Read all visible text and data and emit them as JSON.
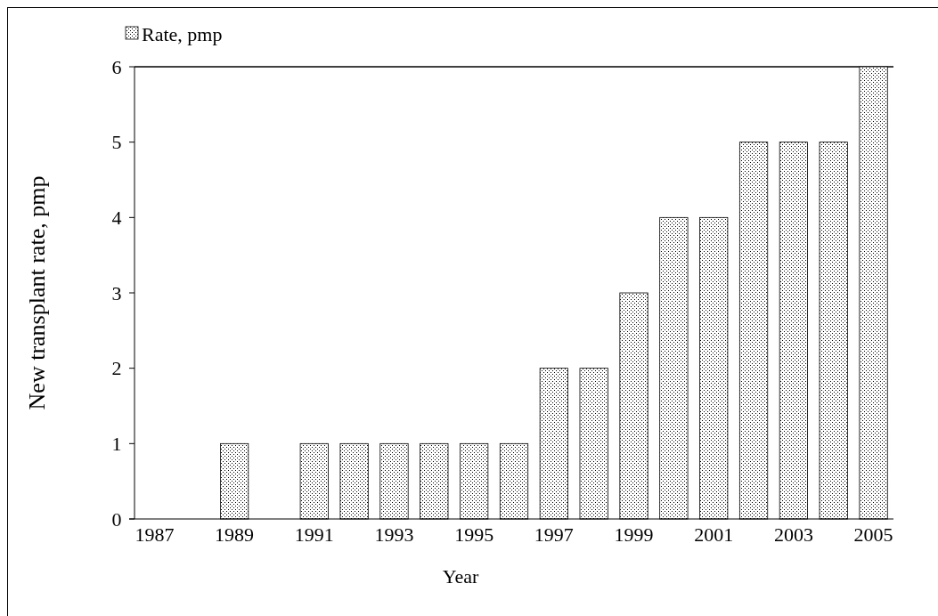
{
  "chart_data": {
    "type": "bar",
    "xlabel": "Year",
    "ylabel": "New transplant rate, pmp",
    "categories": [
      "1987",
      null,
      "1989",
      null,
      "1991",
      null,
      "1993",
      null,
      "1995",
      null,
      "1997",
      null,
      "1999",
      null,
      "2001",
      null,
      "2003",
      null,
      "2005"
    ],
    "series": [
      {
        "name": "Rate, pmp",
        "color": "#000000",
        "values": [
          0,
          0,
          1,
          0,
          1,
          1,
          1,
          1,
          1,
          1,
          2,
          2,
          3,
          4,
          4,
          5,
          5,
          5,
          6
        ]
      }
    ],
    "ylim": [
      0,
      6
    ],
    "yticks": [
      0,
      1,
      2,
      3,
      4,
      5,
      6
    ],
    "legend": "top left",
    "grid": false
  }
}
